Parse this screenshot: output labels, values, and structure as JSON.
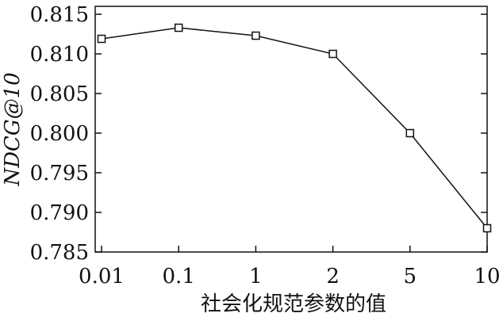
{
  "chart_data": {
    "type": "line",
    "x_label": "社会化规范参数的值",
    "y_label": "NDCG@10",
    "categories": [
      "0.01",
      "0.1",
      "1",
      "2",
      "5",
      "10"
    ],
    "series": [
      {
        "name": "NDCG@10",
        "color": "#111111",
        "values": [
          0.8119,
          0.8133,
          0.8123,
          0.81,
          0.8,
          0.788
        ]
      }
    ],
    "ylim": [
      0.785,
      0.816
    ],
    "yticks": [
      0.785,
      {
        "value": 0.79,
        "label": "0.790"
      },
      0.795,
      {
        "value": 0.8,
        "label": "0.800"
      },
      0.805,
      {
        "value": 0.81,
        "label": "0.810"
      },
      0.815
    ],
    "marker": "square"
  }
}
